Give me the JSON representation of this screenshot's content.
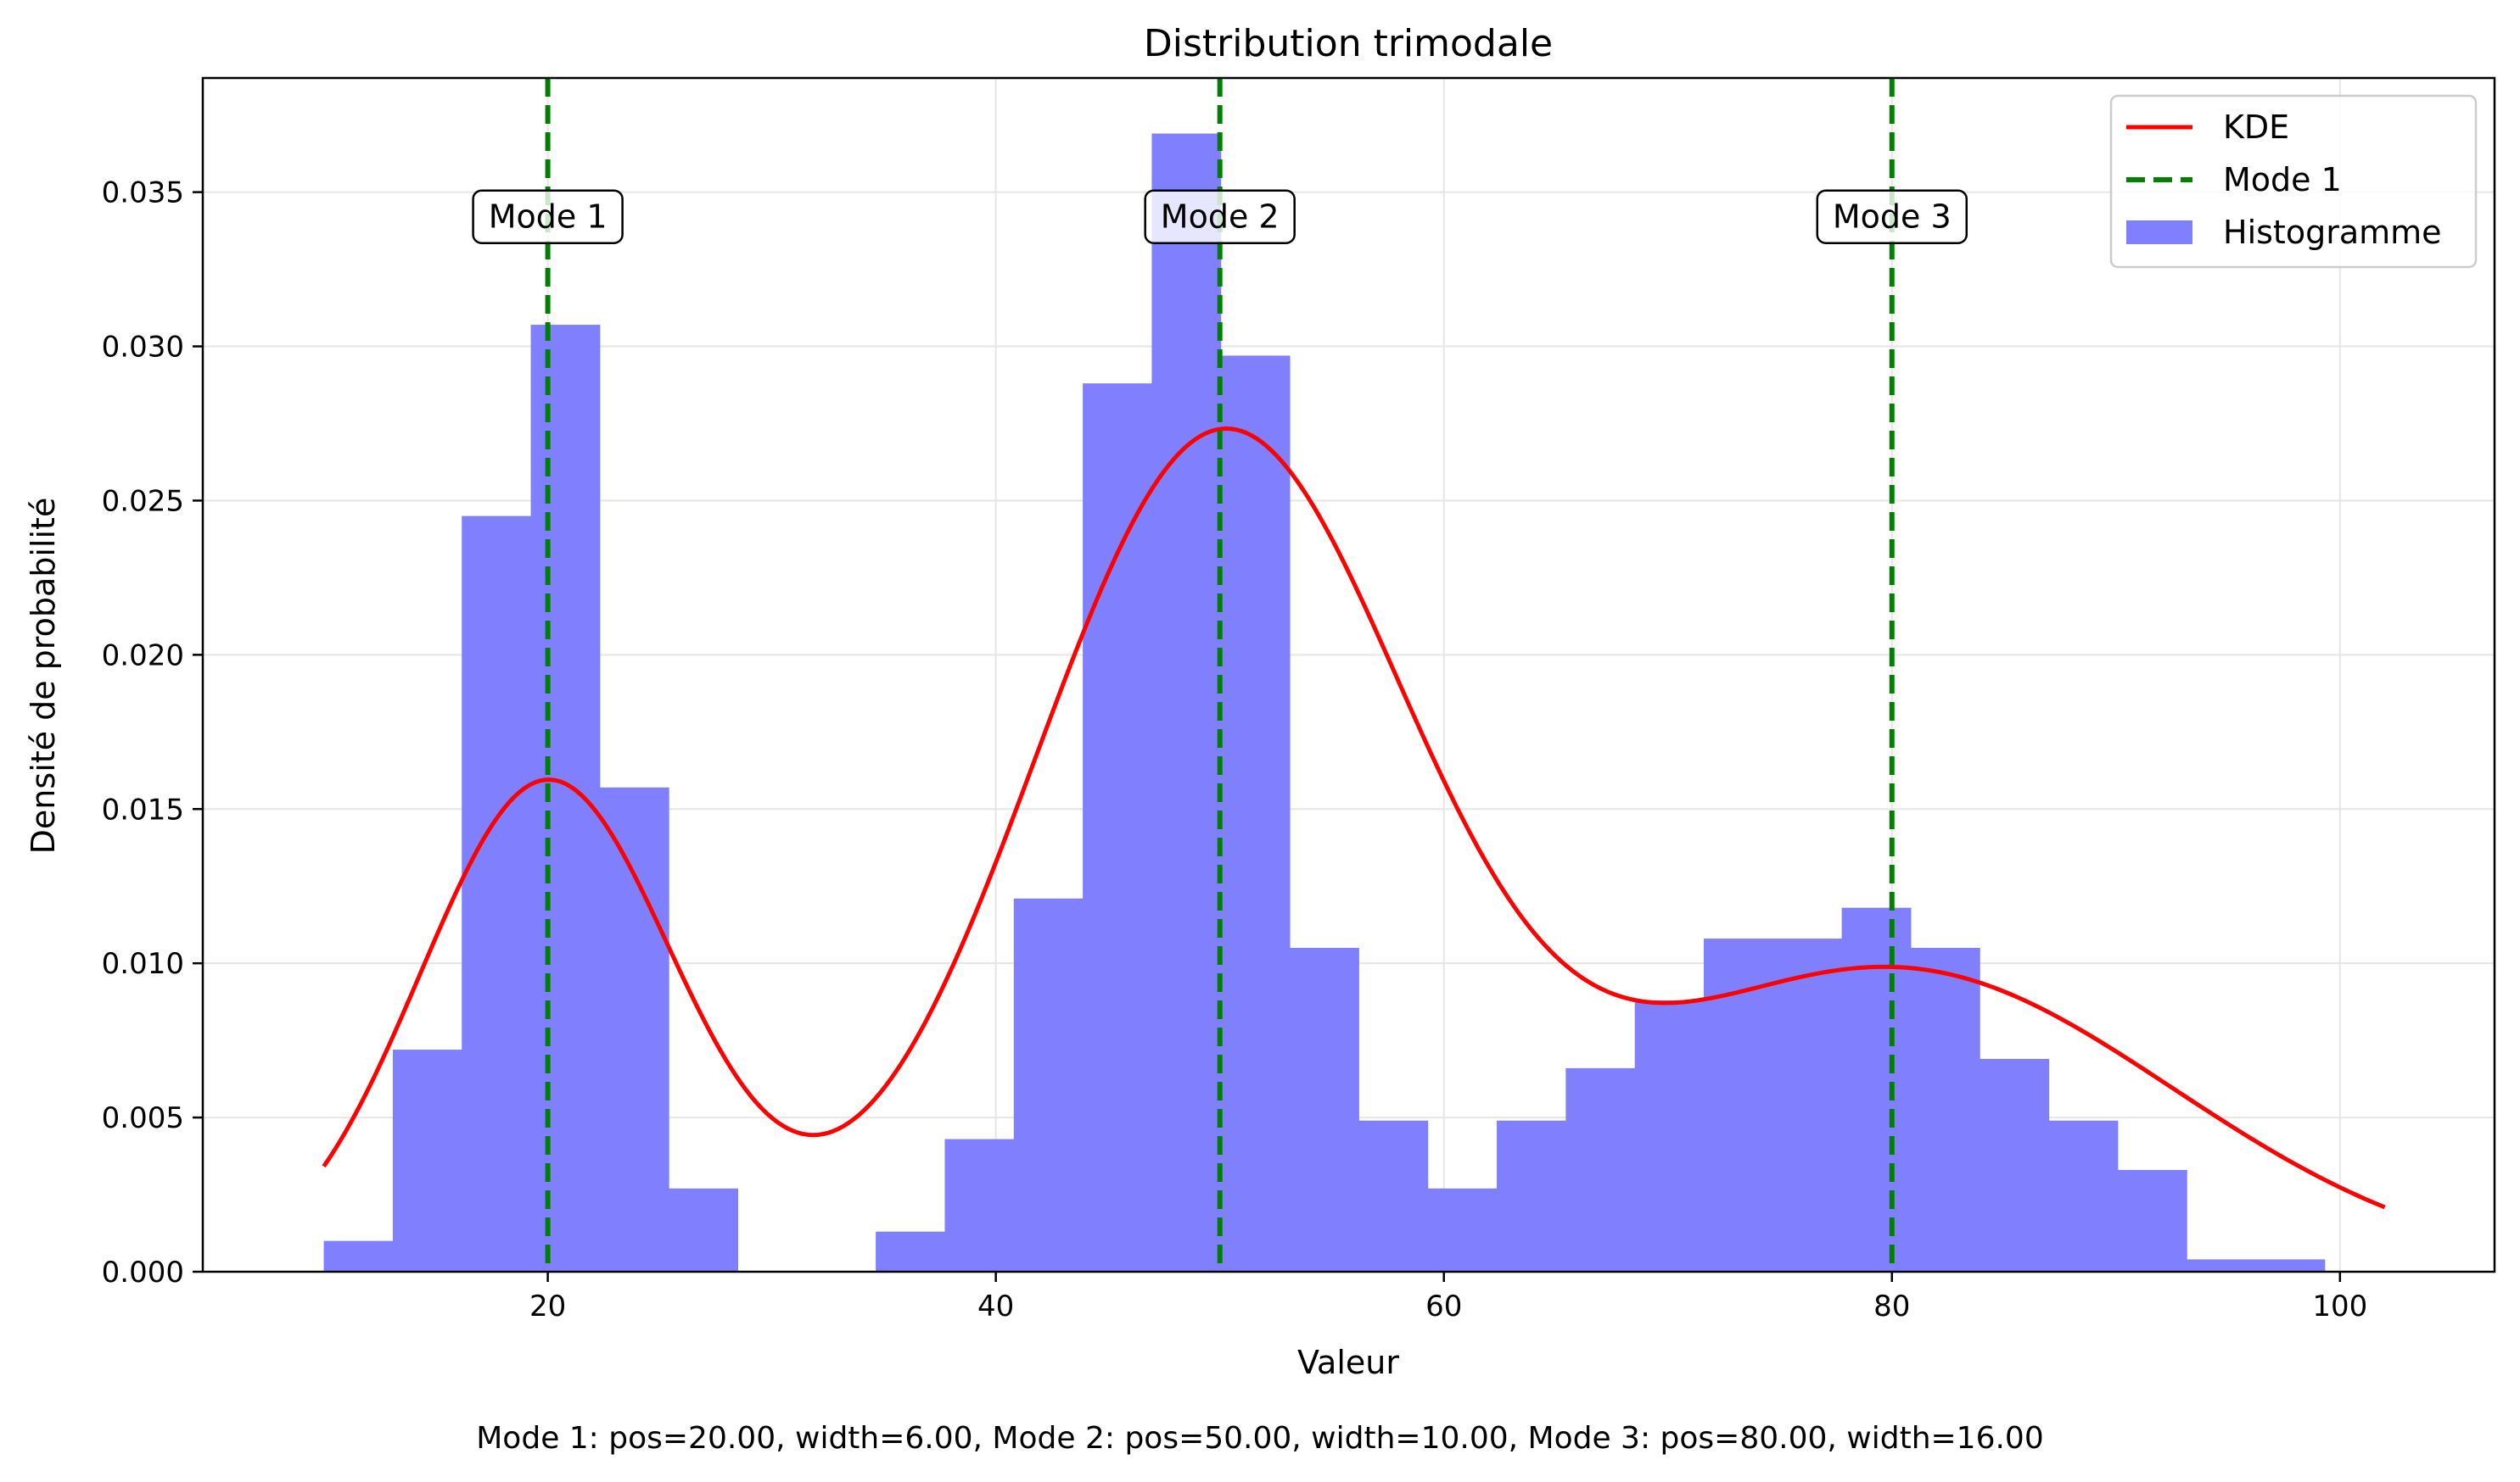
{
  "chart_data": {
    "type": "bar",
    "title": "Distribution trimodale",
    "xlabel": "Valeur",
    "ylabel": "Densité de probabilité",
    "xlim": [
      4.6,
      106.9
    ],
    "ylim": [
      0,
      0.0387
    ],
    "grid": true,
    "legend_position": "top-right",
    "x_ticks": [
      20,
      40,
      60,
      80,
      100
    ],
    "x_tick_labels": [
      "20",
      "40",
      "60",
      "80",
      "100"
    ],
    "y_ticks": [
      0,
      0.005,
      0.01,
      0.015,
      0.02,
      0.025,
      0.03,
      0.035
    ],
    "y_tick_labels": [
      "0.000",
      "0.005",
      "0.010",
      "0.015",
      "0.020",
      "0.025",
      "0.030",
      "0.035"
    ],
    "histogram": {
      "name": "Histogramme",
      "color": "#8080ff",
      "bin_edges": [
        10.0,
        13.08,
        16.16,
        19.24,
        22.32,
        25.4,
        28.48,
        31.56,
        34.64,
        37.72,
        40.8,
        43.88,
        46.96,
        50.04,
        53.12,
        56.2,
        59.28,
        62.36,
        65.44,
        68.52,
        71.6,
        74.68,
        77.76,
        80.84,
        83.92,
        87.0,
        90.08,
        93.16,
        96.24,
        99.32,
        102.4
      ],
      "densities": [
        0.001,
        0.0072,
        0.0245,
        0.0307,
        0.0157,
        0.0027,
        0,
        0,
        0.0013,
        0.0043,
        0.0121,
        0.0288,
        0.0369,
        0.0297,
        0.0105,
        0.0049,
        0.0027,
        0.0049,
        0.0066,
        0.0088,
        0.0108,
        0.0108,
        0.0118,
        0.0105,
        0.0069,
        0.0049,
        0.0033,
        0.0004,
        0.0004,
        0
      ]
    },
    "kde": {
      "name": "KDE",
      "color": "#ff0000",
      "x_range": [
        10,
        102
      ],
      "components": [
        {
          "pos": 20,
          "sigma": 5.7,
          "weight": 0.2273
        },
        {
          "pos": 50,
          "sigma": 8.4,
          "weight": 0.5636
        },
        {
          "pos": 80,
          "sigma": 12.5,
          "weight": 0.3082
        }
      ]
    },
    "modes": [
      {
        "label": "Mode 1",
        "pos": 20
      },
      {
        "label": "Mode 2",
        "pos": 50
      },
      {
        "label": "Mode 3",
        "pos": 80
      }
    ],
    "mode_line_color": "#008000",
    "annotation_y": 0.0342,
    "legend": [
      {
        "label": "KDE",
        "kind": "line",
        "color": "#ff0000"
      },
      {
        "label": "Mode 1",
        "kind": "dashed",
        "color": "#008000"
      },
      {
        "label": "Histogramme",
        "kind": "patch",
        "color": "#8080ff"
      }
    ]
  },
  "footer_text": "Mode 1: pos=20.00, width=6.00, Mode 2: pos=50.00, width=10.00, Mode 3: pos=80.00, width=16.00"
}
